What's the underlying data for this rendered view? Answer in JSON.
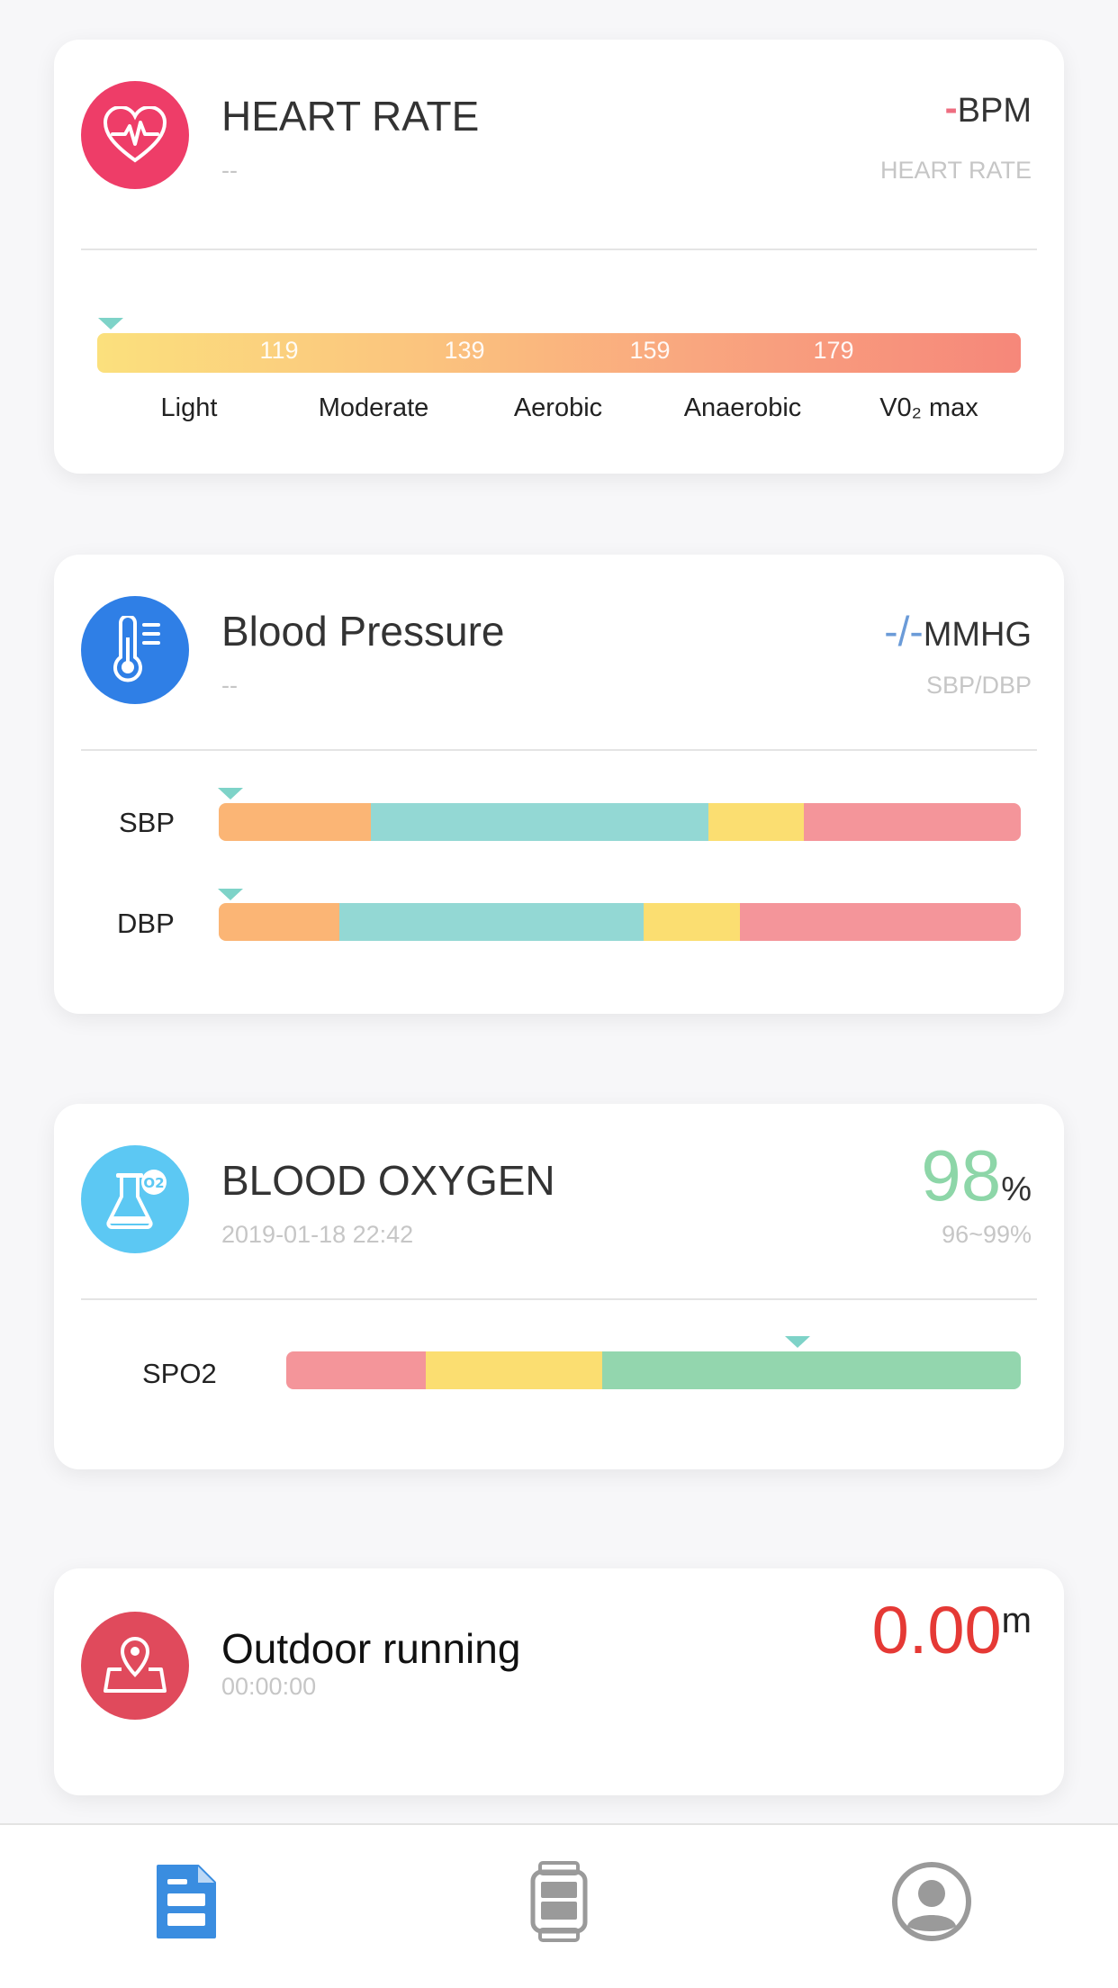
{
  "heart_rate": {
    "icon": "heart-pulse-icon",
    "title": "HEART RATE",
    "subtitle": "--",
    "value": "-",
    "unit": "BPM",
    "caption": "HEART RATE",
    "ticks": [
      "119",
      "139",
      "159",
      "179"
    ],
    "zones": [
      "Light",
      "Moderate",
      "Aerobic",
      "Anaerobic",
      "V0₂ max"
    ],
    "colors": {
      "icon_bg": "#ee3d68",
      "value": "#ee6d80"
    }
  },
  "blood_pressure": {
    "icon": "thermometer-icon",
    "title": "Blood Pressure",
    "subtitle": "--",
    "value": "-/-",
    "unit": "MMHG",
    "caption": "SBP/DBP",
    "rows": [
      {
        "label": "SBP"
      },
      {
        "label": "DBP"
      }
    ],
    "colors": {
      "icon_bg": "#2f7fe6",
      "value": "#6b9bd8"
    }
  },
  "blood_oxygen": {
    "icon": "flask-o2-icon",
    "title": "BLOOD OXYGEN",
    "subtitle": "2019-01-18 22:42",
    "value": "98",
    "unit": "%",
    "caption": "96~99%",
    "row_label": "SPO2",
    "colors": {
      "icon_bg": "#5cc8f3",
      "value": "#8dd6a8"
    }
  },
  "outdoor_running": {
    "icon": "map-pin-icon",
    "title": "Outdoor running",
    "subtitle": "00:00:00",
    "value": "0.00",
    "unit": "m",
    "colors": {
      "icon_bg": "#e04a5c",
      "value": "#e53935"
    }
  },
  "tabbar": {
    "tabs": [
      {
        "icon": "report-icon",
        "active": true
      },
      {
        "icon": "watch-icon",
        "active": false
      },
      {
        "icon": "profile-icon",
        "active": false
      }
    ],
    "colors": {
      "active": "#3a8de0",
      "inactive": "#9a9a9a"
    }
  }
}
